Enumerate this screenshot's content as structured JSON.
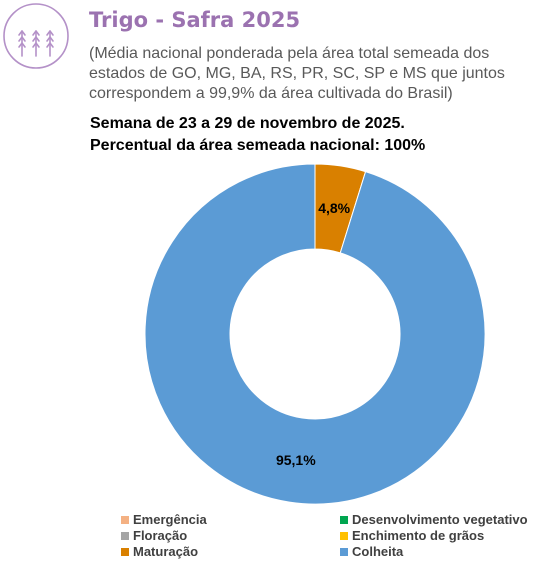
{
  "header": {
    "title": "Trigo - Safra 2025",
    "subtitle": "(Média nacional ponderada pela área total semeada dos estados de GO, MG, BA, RS, PR, SC, SP e MS que juntos correspondem a 99,9% da área cultivada do Brasil)",
    "week": "Semana de 23 a 29 de novembro de 2025.",
    "percent_sown": "Percentual da área semeada nacional: 100%",
    "logo_icon": "wheat-icon",
    "logo_color": "#b491c8"
  },
  "chart_data": {
    "type": "pie",
    "donut": true,
    "title": "",
    "categories": [
      "Emergência",
      "Desenvolvimento vegetativo",
      "Floração",
      "Enchimento de grãos",
      "Maturação",
      "Colheita"
    ],
    "values": [
      0,
      0,
      0,
      0,
      4.8,
      95.1
    ],
    "data_labels": [
      "",
      "",
      "",
      "",
      "4,8%",
      "95,1%"
    ],
    "colors": [
      "#f4b183",
      "#00a650",
      "#a5a5a5",
      "#ffc000",
      "#d98000",
      "#5b9bd5"
    ],
    "legend_position": "bottom"
  }
}
